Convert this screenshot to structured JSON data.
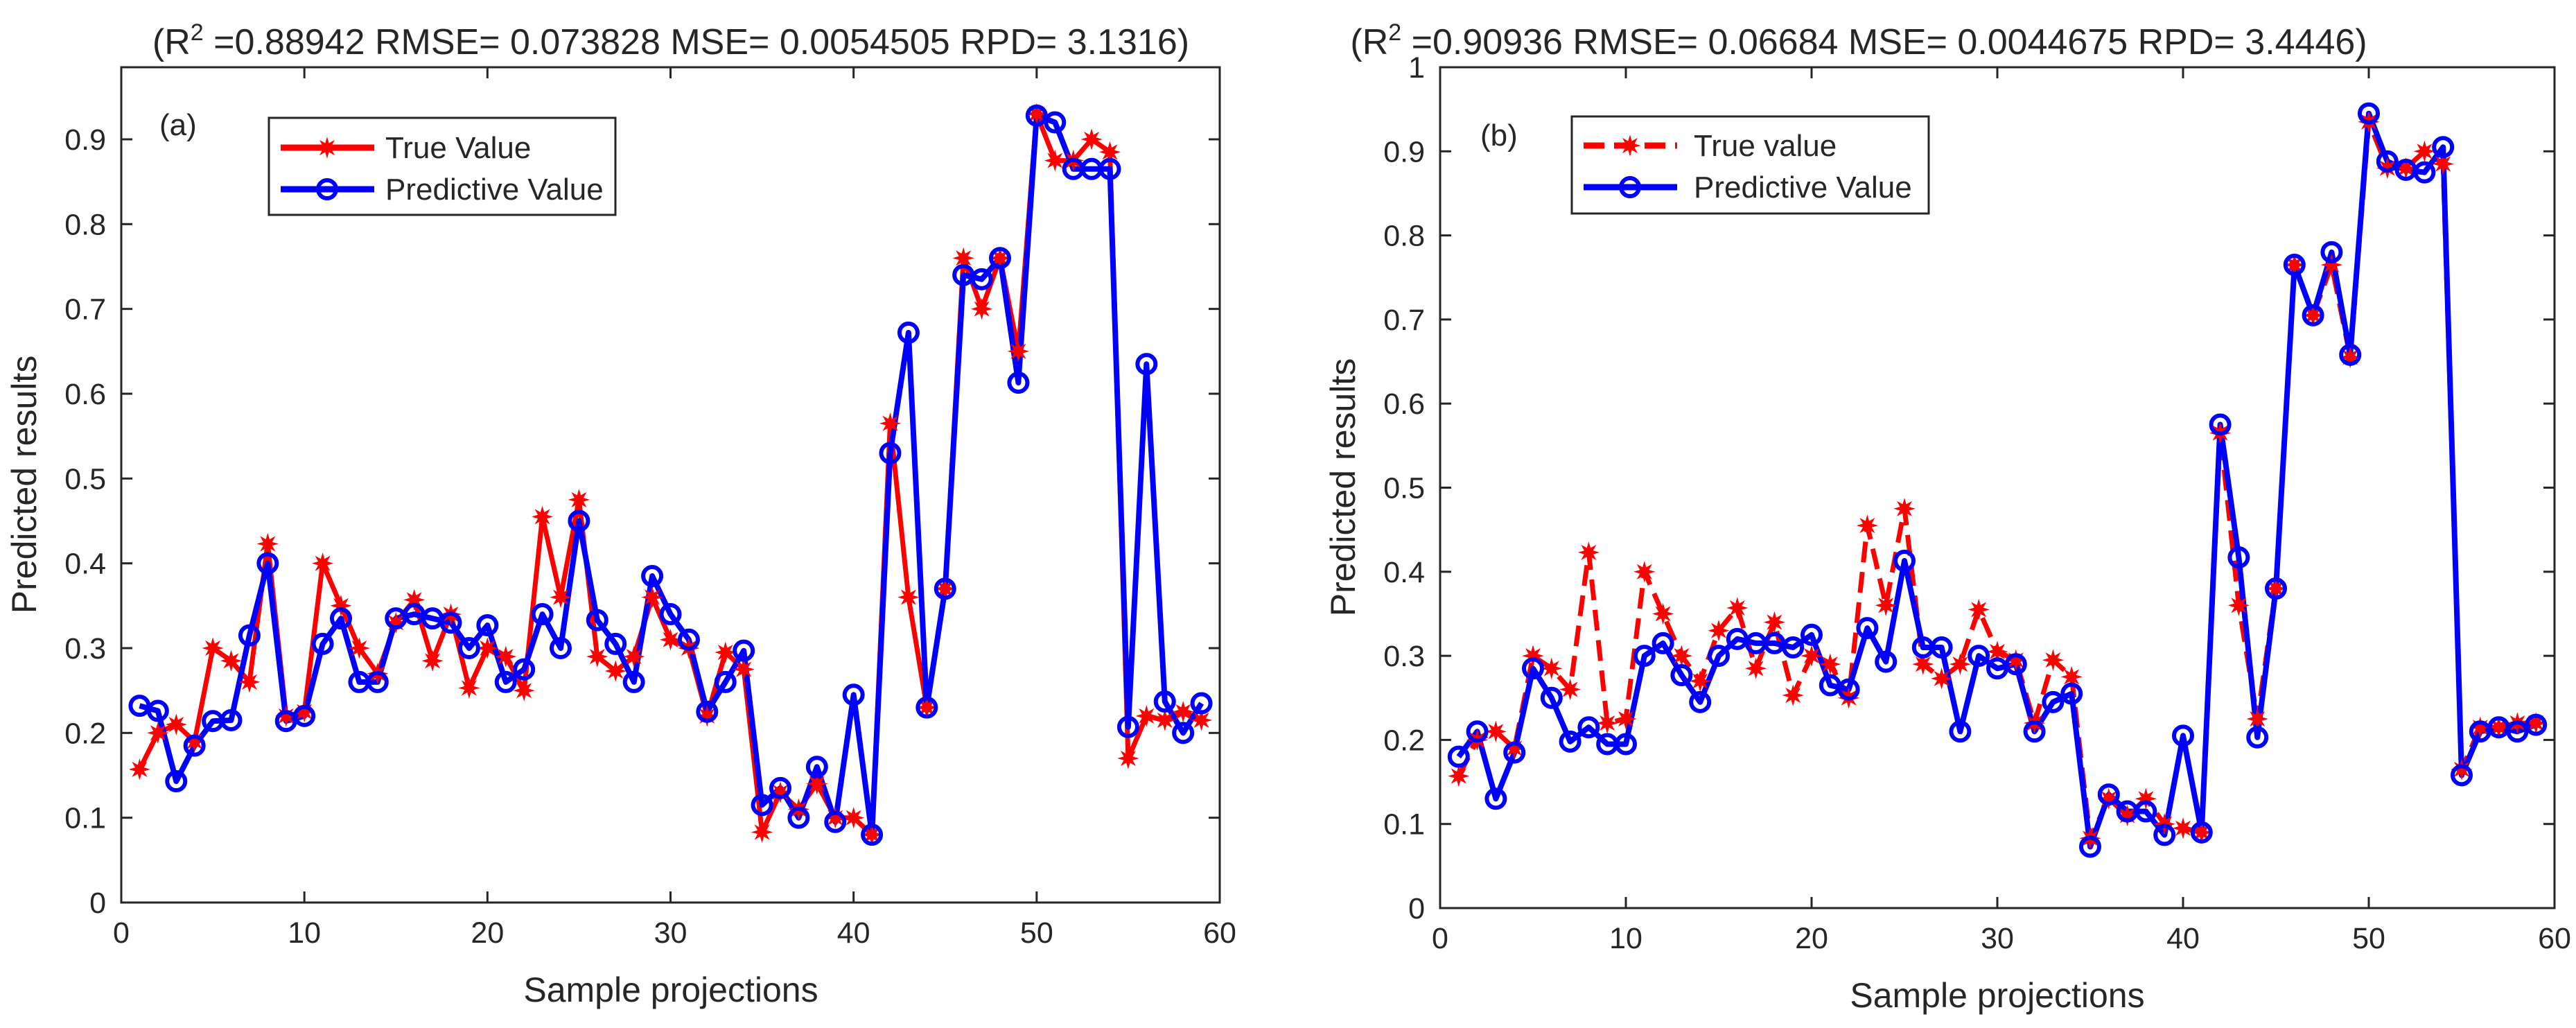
{
  "colors": {
    "true_series": "#ff0000",
    "predictive_series": "#0000ff",
    "axes": "#262626",
    "background": "#ffffff"
  },
  "chart_data": [
    {
      "type": "line",
      "panel_label": "(a)",
      "title": {
        "prefix": "(R",
        "sup": "2",
        "rest": " =0.88942 RMSE= 0.073828 MSE= 0.0054505 RPD= 3.1316)"
      },
      "xlabel": "Sample projections",
      "ylabel": "Predicted results",
      "xlim": [
        0,
        60
      ],
      "ylim": [
        0,
        1.0
      ],
      "xticks": [
        0,
        10,
        20,
        30,
        40,
        50,
        60
      ],
      "yticks": [
        0,
        0.1,
        0.2,
        0.3,
        0.4,
        0.5,
        0.6,
        0.7,
        0.8,
        0.9
      ],
      "ytick_labels": [
        "0",
        "0.1",
        "0.2",
        "0.3",
        "0.4",
        "0.5",
        "0.6",
        "0.7",
        "0.8",
        "0.9"
      ],
      "legend_position": "top-left",
      "x": [
        1,
        2,
        3,
        4,
        5,
        6,
        7,
        8,
        9,
        10,
        11,
        12,
        13,
        14,
        15,
        16,
        17,
        18,
        19,
        20,
        21,
        22,
        23,
        24,
        25,
        26,
        27,
        28,
        29,
        30,
        31,
        32,
        33,
        34,
        35,
        36,
        37,
        38,
        39,
        40,
        41,
        42,
        43,
        44,
        45,
        46,
        47,
        48,
        49,
        50,
        51,
        52,
        53,
        54,
        55,
        56,
        57,
        58,
        59
      ],
      "series": [
        {
          "name": "True Value",
          "marker": "star",
          "color": "#ff0000",
          "values": [
            0.157,
            0.2,
            0.21,
            0.19,
            0.3,
            0.285,
            0.26,
            0.423,
            0.22,
            0.225,
            0.4,
            0.35,
            0.3,
            0.27,
            0.33,
            0.357,
            0.285,
            0.34,
            0.253,
            0.3,
            0.29,
            0.25,
            0.455,
            0.36,
            0.475,
            0.29,
            0.273,
            0.29,
            0.36,
            0.31,
            0.3,
            0.22,
            0.295,
            0.275,
            0.083,
            0.13,
            0.11,
            0.14,
            0.1,
            0.1,
            0.08,
            0.565,
            0.36,
            0.23,
            0.37,
            0.76,
            0.7,
            0.76,
            0.65,
            0.93,
            0.875,
            0.875,
            0.9,
            0.885,
            0.17,
            0.22,
            0.215,
            0.225,
            0.215
          ]
        },
        {
          "name": "Predictive Value",
          "marker": "circle",
          "color": "#0000ff",
          "values": [
            0.232,
            0.226,
            0.143,
            0.185,
            0.214,
            0.215,
            0.315,
            0.4,
            0.214,
            0.22,
            0.305,
            0.335,
            0.26,
            0.26,
            0.335,
            0.34,
            0.335,
            0.33,
            0.3,
            0.327,
            0.26,
            0.275,
            0.34,
            0.3,
            0.45,
            0.333,
            0.305,
            0.26,
            0.385,
            0.34,
            0.31,
            0.225,
            0.26,
            0.297,
            0.115,
            0.135,
            0.1,
            0.16,
            0.095,
            0.245,
            0.08,
            0.53,
            0.672,
            0.23,
            0.37,
            0.74,
            0.735,
            0.76,
            0.613,
            0.928,
            0.92,
            0.865,
            0.865,
            0.865,
            0.207,
            0.635,
            0.237,
            0.2,
            0.235
          ]
        }
      ]
    },
    {
      "type": "line",
      "panel_label": "(b)",
      "title": {
        "prefix": "(R",
        "sup": "2",
        "rest": " =0.90936 RMSE= 0.06684 MSE= 0.0044675 RPD= 3.4446)"
      },
      "xlabel": "Sample projections",
      "ylabel": "Predicted results",
      "xlim": [
        0,
        60
      ],
      "ylim": [
        0,
        1.0
      ],
      "xticks": [
        0,
        10,
        20,
        30,
        40,
        50,
        60
      ],
      "yticks": [
        0,
        0.1,
        0.2,
        0.3,
        0.4,
        0.5,
        0.6,
        0.7,
        0.8,
        0.9,
        1.0
      ],
      "ytick_labels": [
        "0",
        "0.1",
        "0.2",
        "0.3",
        "0.4",
        "0.5",
        "0.6",
        "0.7",
        "0.8",
        "0.9",
        "1"
      ],
      "legend_position": "top-left",
      "x": [
        1,
        2,
        3,
        4,
        5,
        6,
        7,
        8,
        9,
        10,
        11,
        12,
        13,
        14,
        15,
        16,
        17,
        18,
        19,
        20,
        21,
        22,
        23,
        24,
        25,
        26,
        27,
        28,
        29,
        30,
        31,
        32,
        33,
        34,
        35,
        36,
        37,
        38,
        39,
        40,
        41,
        42,
        43,
        44,
        45,
        46,
        47,
        48,
        49,
        50,
        51,
        52,
        53,
        54,
        55,
        56,
        57,
        58,
        59
      ],
      "series": [
        {
          "name": "True value",
          "marker": "star",
          "color": "#ff0000",
          "values": [
            0.157,
            0.2,
            0.21,
            0.19,
            0.3,
            0.285,
            0.26,
            0.423,
            0.22,
            0.225,
            0.4,
            0.35,
            0.3,
            0.27,
            0.33,
            0.357,
            0.285,
            0.34,
            0.253,
            0.3,
            0.29,
            0.25,
            0.455,
            0.36,
            0.475,
            0.29,
            0.273,
            0.29,
            0.355,
            0.305,
            0.295,
            0.22,
            0.295,
            0.275,
            0.083,
            0.13,
            0.11,
            0.13,
            0.1,
            0.095,
            0.09,
            0.565,
            0.36,
            0.225,
            0.38,
            0.765,
            0.705,
            0.765,
            0.655,
            0.935,
            0.88,
            0.88,
            0.9,
            0.885,
            0.165,
            0.215,
            0.215,
            0.22,
            0.22
          ]
        },
        {
          "name": "Predictive Value",
          "marker": "circle",
          "color": "#0000ff",
          "values": [
            0.18,
            0.21,
            0.13,
            0.185,
            0.285,
            0.25,
            0.198,
            0.215,
            0.195,
            0.195,
            0.3,
            0.315,
            0.277,
            0.245,
            0.3,
            0.32,
            0.315,
            0.315,
            0.31,
            0.325,
            0.265,
            0.26,
            0.333,
            0.293,
            0.413,
            0.31,
            0.31,
            0.21,
            0.3,
            0.285,
            0.29,
            0.21,
            0.245,
            0.255,
            0.073,
            0.135,
            0.115,
            0.115,
            0.087,
            0.205,
            0.09,
            0.575,
            0.417,
            0.203,
            0.38,
            0.765,
            0.705,
            0.78,
            0.658,
            0.945,
            0.888,
            0.878,
            0.875,
            0.905,
            0.158,
            0.21,
            0.215,
            0.21,
            0.218
          ]
        }
      ]
    }
  ]
}
